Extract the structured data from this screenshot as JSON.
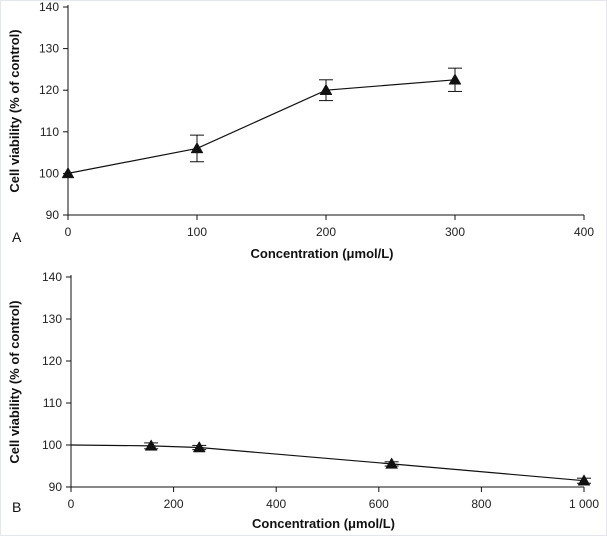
{
  "chart_data": [
    {
      "panel_label": "A",
      "type": "line",
      "xlabel": "Concentration (μmol/L)",
      "ylabel": "Cell viability (% of control)",
      "xlim": [
        0,
        400
      ],
      "ylim": [
        90,
        140
      ],
      "xticks": [
        0,
        100,
        200,
        300,
        400
      ],
      "xtick_labels": [
        "0",
        "100",
        "200",
        "300",
        "400"
      ],
      "yticks": [
        90,
        100,
        110,
        120,
        130,
        140
      ],
      "ytick_labels": [
        "90",
        "100",
        "110",
        "120",
        "130",
        "140"
      ],
      "marker": "triangle",
      "x": [
        0,
        100,
        200,
        300
      ],
      "y": [
        100,
        106,
        120,
        122.5
      ],
      "error": [
        0,
        3.2,
        2.5,
        2.8
      ]
    },
    {
      "panel_label": "B",
      "type": "line",
      "xlabel": "Concentration (μmol/L)",
      "ylabel": "Cell viability (% of control)",
      "xlim": [
        0,
        1000
      ],
      "ylim": [
        90,
        140
      ],
      "xticks": [
        0,
        200,
        400,
        600,
        800,
        1000
      ],
      "xtick_labels": [
        "0",
        "200",
        "400",
        "600",
        "800",
        "1 000"
      ],
      "yticks": [
        90,
        100,
        110,
        120,
        130,
        140
      ],
      "ytick_labels": [
        "90",
        "100",
        "110",
        "120",
        "130",
        "140"
      ],
      "marker": "triangle",
      "x": [
        0,
        156.25,
        250,
        625,
        1000
      ],
      "y": [
        100,
        99.8,
        99.4,
        95.5,
        91.5
      ],
      "error": [
        0,
        0.7,
        0.5,
        0.5,
        0.6
      ],
      "marker_visible": [
        false,
        true,
        true,
        true,
        true
      ]
    }
  ]
}
